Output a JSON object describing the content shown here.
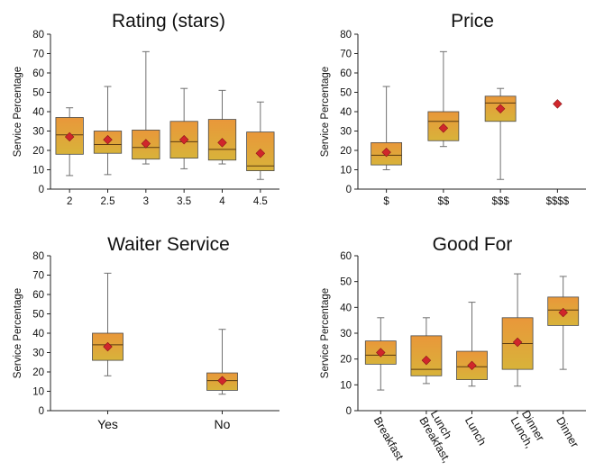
{
  "colors": {
    "box_upper": "#e9973a",
    "box_lower": "#d8b33a",
    "box_edge": "#4a4a4a",
    "median_line": "#5a3a10",
    "whisker": "#707070",
    "mean_marker": "#d0262b",
    "mean_marker_edge": "#8a1418",
    "axis": "#222222"
  },
  "chart_data": [
    {
      "type": "box",
      "title": "Rating (stars)",
      "ylabel": "Service Percentage",
      "ylim": [
        0,
        80
      ],
      "yticks": [
        0,
        10,
        20,
        30,
        40,
        50,
        60,
        70,
        80
      ],
      "categories": [
        "2",
        "2.5",
        "3",
        "3.5",
        "4",
        "4.5"
      ],
      "boxes": [
        {
          "min": 7,
          "q1": 18,
          "median": 28,
          "q3": 37,
          "max": 42,
          "mean": 27
        },
        {
          "min": 7.5,
          "q1": 18.5,
          "median": 23,
          "q3": 30,
          "max": 53,
          "mean": 25.5
        },
        {
          "min": 13,
          "q1": 15.5,
          "median": 21.5,
          "q3": 30.5,
          "max": 71,
          "mean": 23.5
        },
        {
          "min": 10.5,
          "q1": 16,
          "median": 24.5,
          "q3": 35,
          "max": 52,
          "mean": 25.5
        },
        {
          "min": 13,
          "q1": 15,
          "median": 20.5,
          "q3": 36,
          "max": 51,
          "mean": 24
        },
        {
          "min": 5,
          "q1": 9.5,
          "median": 12,
          "q3": 29.5,
          "max": 45,
          "mean": 18.5
        }
      ]
    },
    {
      "type": "box",
      "title": "Price",
      "ylabel": "Service Percentage",
      "ylim": [
        0,
        80
      ],
      "yticks": [
        0,
        10,
        20,
        30,
        40,
        50,
        60,
        70,
        80
      ],
      "categories": [
        "$",
        "$$",
        "$$$",
        "$$$$"
      ],
      "boxes": [
        {
          "min": 10,
          "q1": 12.5,
          "median": 17.5,
          "q3": 24,
          "max": 53,
          "mean": 19
        },
        {
          "min": 22,
          "q1": 25,
          "median": 35,
          "q3": 40,
          "max": 71,
          "mean": 31.5
        },
        {
          "min": 5,
          "q1": 35,
          "median": 44.5,
          "q3": 48,
          "max": 52,
          "mean": 41.5
        },
        {
          "min": 44,
          "q1": 44,
          "median": 44,
          "q3": 44,
          "max": 44,
          "mean": 44
        }
      ]
    },
    {
      "type": "box",
      "title": "Waiter Service",
      "ylabel": "Service Percentage",
      "ylim": [
        0,
        80
      ],
      "yticks": [
        0,
        10,
        20,
        30,
        40,
        50,
        60,
        70,
        80
      ],
      "categories": [
        "Yes",
        "No"
      ],
      "boxes": [
        {
          "min": 18,
          "q1": 26,
          "median": 34,
          "q3": 40,
          "max": 71,
          "mean": 33
        },
        {
          "min": 8.5,
          "q1": 10.5,
          "median": 15.5,
          "q3": 19.5,
          "max": 42,
          "mean": 15.5
        }
      ]
    },
    {
      "type": "box",
      "title": "Good For",
      "ylabel": "Service Percentage",
      "ylim": [
        0,
        60
      ],
      "yticks": [
        0,
        10,
        20,
        30,
        40,
        50,
        60
      ],
      "categories": [
        "Breakfast",
        "Breakfast,\nLunch",
        "Lunch",
        "Lunch,\nDinner",
        "Dinner"
      ],
      "boxes": [
        {
          "min": 8,
          "q1": 18,
          "median": 21.5,
          "q3": 27,
          "max": 36,
          "mean": 22.5
        },
        {
          "min": 10.5,
          "q1": 13.5,
          "median": 16,
          "q3": 29,
          "max": 36,
          "mean": 19.5
        },
        {
          "min": 9.5,
          "q1": 12,
          "median": 17,
          "q3": 23,
          "max": 42,
          "mean": 17.5
        },
        {
          "min": 9.5,
          "q1": 16,
          "median": 26,
          "q3": 36,
          "max": 53,
          "mean": 26.5
        },
        {
          "min": 16,
          "q1": 33,
          "median": 39,
          "q3": 44,
          "max": 52,
          "mean": 38
        }
      ]
    }
  ]
}
